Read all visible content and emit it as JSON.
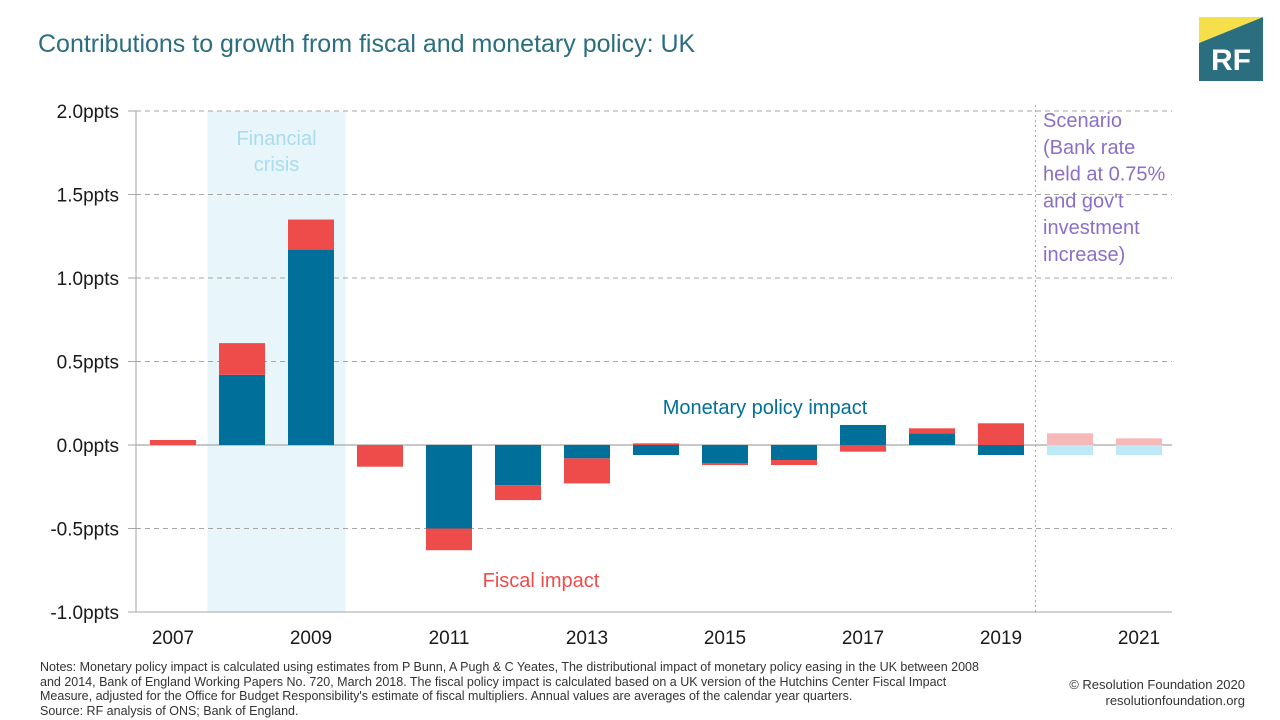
{
  "title": "Contributions to growth from fiscal and monetary policy: UK",
  "logo": {
    "text": "RF",
    "colors": {
      "box": "#2a6e7f",
      "accent": "#f5e04b",
      "text": "#ffffff"
    }
  },
  "chart_data": {
    "type": "bar",
    "stacked": true,
    "unit_suffix": "ppts",
    "ylim": [
      -1.0,
      2.0
    ],
    "yticks": [
      "2.0ppts",
      "1.5ppts",
      "1.0ppts",
      "0.5ppts",
      "0.0ppts",
      "-0.5ppts",
      "-1.0ppts"
    ],
    "ytick_values": [
      2.0,
      1.5,
      1.0,
      0.5,
      0.0,
      -0.5,
      -1.0
    ],
    "categories": [
      "2007",
      "2008",
      "2009",
      "2010",
      "2011",
      "2012",
      "2013",
      "2014",
      "2015",
      "2016",
      "2017",
      "2018",
      "2019",
      "2020",
      "2021"
    ],
    "xtick_labels": [
      "2007",
      "",
      "2009",
      "",
      "2011",
      "",
      "2013",
      "",
      "2015",
      "",
      "2017",
      "",
      "2019",
      "",
      "2021"
    ],
    "series": [
      {
        "name": "Monetary policy impact",
        "color": "#006f99",
        "scenario_color": "#bde9f7",
        "values": [
          0.0,
          0.42,
          1.17,
          0.0,
          -0.5,
          -0.24,
          -0.08,
          -0.06,
          -0.11,
          -0.09,
          0.12,
          0.07,
          -0.06,
          -0.06,
          -0.06
        ]
      },
      {
        "name": "Fiscal impact",
        "color": "#ee4b4b",
        "scenario_color": "#f7b8b8",
        "values": [
          0.03,
          0.19,
          0.18,
          -0.13,
          -0.13,
          -0.09,
          -0.15,
          0.01,
          -0.01,
          -0.03,
          -0.04,
          0.03,
          0.13,
          0.07,
          0.04
        ]
      }
    ],
    "scenario_start_category": "2020",
    "shaded_region": {
      "from": "2008",
      "to": "2009",
      "label_lines": [
        "Financial",
        "crisis"
      ],
      "color": "#e8f5fb",
      "text_color": "#a9dcee"
    },
    "scenario_label_lines": [
      "Scenario",
      "(Bank rate",
      "held at 0.75%",
      "and gov't",
      "investment",
      "increase)"
    ],
    "scenario_text_color": "#8a6fc9",
    "grid": true
  },
  "notes": {
    "lines": [
      "Notes: Monetary policy impact is calculated using estimates from P Bunn, A Pugh & C Yeates, The distributional impact of monetary policy easing in the UK between 2008",
      "and 2014, Bank of England Working Papers No. 720, March 2018. The fiscal policy impact is calculated based on a UK version of the Hutchins Center Fiscal Impact",
      "Measure, adjusted for the Office for Budget Responsibility's estimate of fiscal multipliers. Annual values are averages of the calendar year quarters.",
      "Source: RF analysis of ONS; Bank of England."
    ]
  },
  "credit": {
    "copyright": "© Resolution Foundation 2020",
    "website": "resolutionfoundation.org"
  }
}
